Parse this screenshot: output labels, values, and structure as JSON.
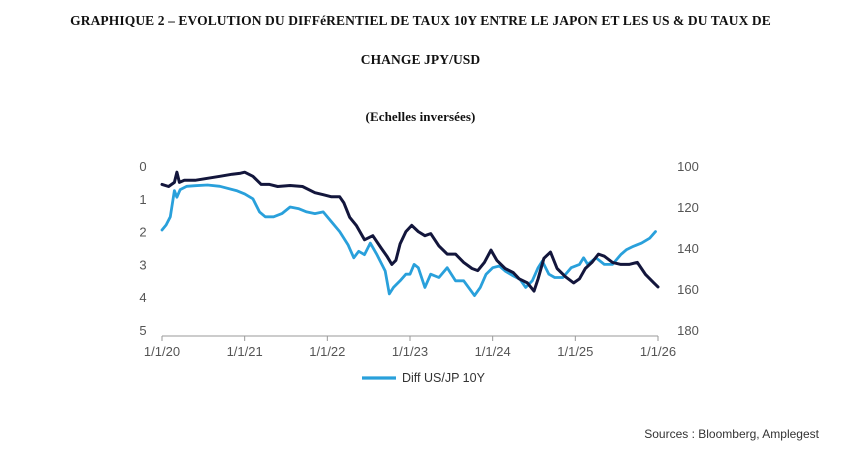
{
  "title_line1": "GRAPHIQUE 2 – EVOLUTION DU DIFFéRENTIEL DE TAUX 10Y ENTRE LE JAPON ET LES US & DU TAUX DE",
  "title_line2": "CHANGE JPY/USD",
  "subtitle": "(Echelles inversées)",
  "source": "Sources : Bloomberg, Amplegest",
  "colors": {
    "diff": "#29a0db",
    "fx": "#13163c",
    "axis": "#9a9a9a"
  },
  "chart_data": {
    "type": "line",
    "inverted_axes": true,
    "x_ticks": [
      "1/1/20",
      "1/1/21",
      "1/1/22",
      "1/1/23",
      "1/1/24",
      "1/1/25",
      "1/1/26"
    ],
    "x_range": [
      2020.0,
      2026.0
    ],
    "y_left": {
      "ticks": [
        "0",
        "1",
        "2",
        "3",
        "4",
        "5"
      ],
      "range": [
        0,
        5
      ],
      "inverted": true
    },
    "y_right": {
      "ticks": [
        "100",
        "120",
        "140",
        "160",
        "180"
      ],
      "range": [
        100,
        180
      ],
      "inverted": true
    },
    "legend": [
      {
        "label": "Diff US/JP 10Y",
        "series": "diff"
      }
    ],
    "series": [
      {
        "name": "Diff US/JP 10Y",
        "key": "diff",
        "axis": "left",
        "points": [
          [
            2020.0,
            1.95
          ],
          [
            2020.05,
            1.8
          ],
          [
            2020.1,
            1.55
          ],
          [
            2020.15,
            0.75
          ],
          [
            2020.18,
            0.95
          ],
          [
            2020.22,
            0.72
          ],
          [
            2020.3,
            0.62
          ],
          [
            2020.4,
            0.6
          ],
          [
            2020.55,
            0.58
          ],
          [
            2020.7,
            0.62
          ],
          [
            2020.9,
            0.75
          ],
          [
            2021.0,
            0.85
          ],
          [
            2021.1,
            1.0
          ],
          [
            2021.18,
            1.4
          ],
          [
            2021.25,
            1.55
          ],
          [
            2021.35,
            1.55
          ],
          [
            2021.45,
            1.45
          ],
          [
            2021.55,
            1.25
          ],
          [
            2021.65,
            1.3
          ],
          [
            2021.75,
            1.4
          ],
          [
            2021.85,
            1.45
          ],
          [
            2021.95,
            1.4
          ],
          [
            2022.05,
            1.7
          ],
          [
            2022.15,
            2.0
          ],
          [
            2022.25,
            2.4
          ],
          [
            2022.32,
            2.8
          ],
          [
            2022.38,
            2.6
          ],
          [
            2022.45,
            2.7
          ],
          [
            2022.52,
            2.35
          ],
          [
            2022.6,
            2.7
          ],
          [
            2022.7,
            3.2
          ],
          [
            2022.75,
            3.9
          ],
          [
            2022.8,
            3.7
          ],
          [
            2022.88,
            3.5
          ],
          [
            2022.95,
            3.3
          ],
          [
            2023.0,
            3.3
          ],
          [
            2023.05,
            3.0
          ],
          [
            2023.1,
            3.1
          ],
          [
            2023.18,
            3.7
          ],
          [
            2023.25,
            3.3
          ],
          [
            2023.35,
            3.4
          ],
          [
            2023.45,
            3.1
          ],
          [
            2023.55,
            3.5
          ],
          [
            2023.65,
            3.5
          ],
          [
            2023.78,
            3.95
          ],
          [
            2023.85,
            3.7
          ],
          [
            2023.92,
            3.3
          ],
          [
            2024.0,
            3.1
          ],
          [
            2024.08,
            3.05
          ],
          [
            2024.15,
            3.2
          ],
          [
            2024.25,
            3.35
          ],
          [
            2024.33,
            3.45
          ],
          [
            2024.4,
            3.7
          ],
          [
            2024.48,
            3.5
          ],
          [
            2024.55,
            3.1
          ],
          [
            2024.6,
            2.9
          ],
          [
            2024.68,
            3.3
          ],
          [
            2024.75,
            3.4
          ],
          [
            2024.85,
            3.4
          ],
          [
            2024.95,
            3.1
          ],
          [
            2025.05,
            3.0
          ],
          [
            2025.1,
            2.8
          ],
          [
            2025.15,
            3.0
          ],
          [
            2025.25,
            2.8
          ],
          [
            2025.35,
            3.0
          ],
          [
            2025.45,
            3.0
          ],
          [
            2025.55,
            2.7
          ],
          [
            2025.62,
            2.55
          ],
          [
            2025.7,
            2.45
          ],
          [
            2025.8,
            2.35
          ],
          [
            2025.9,
            2.2
          ],
          [
            2025.97,
            2.0
          ]
        ]
      },
      {
        "name": "JPY/USD",
        "key": "fx",
        "axis": "right",
        "points": [
          [
            2020.0,
            109
          ],
          [
            2020.08,
            110
          ],
          [
            2020.15,
            108
          ],
          [
            2020.18,
            103
          ],
          [
            2020.21,
            108
          ],
          [
            2020.27,
            107
          ],
          [
            2020.4,
            107
          ],
          [
            2020.55,
            106
          ],
          [
            2020.7,
            105
          ],
          [
            2020.85,
            104
          ],
          [
            2020.95,
            103.5
          ],
          [
            2021.0,
            103
          ],
          [
            2021.1,
            105
          ],
          [
            2021.2,
            109
          ],
          [
            2021.3,
            109
          ],
          [
            2021.4,
            110
          ],
          [
            2021.55,
            109.5
          ],
          [
            2021.7,
            110
          ],
          [
            2021.85,
            113
          ],
          [
            2021.95,
            114
          ],
          [
            2022.05,
            115
          ],
          [
            2022.15,
            115
          ],
          [
            2022.2,
            118
          ],
          [
            2022.27,
            125
          ],
          [
            2022.35,
            129
          ],
          [
            2022.45,
            136
          ],
          [
            2022.55,
            134
          ],
          [
            2022.65,
            140
          ],
          [
            2022.72,
            144
          ],
          [
            2022.78,
            148
          ],
          [
            2022.83,
            146
          ],
          [
            2022.88,
            138
          ],
          [
            2022.95,
            132
          ],
          [
            2023.02,
            129
          ],
          [
            2023.1,
            132
          ],
          [
            2023.18,
            134
          ],
          [
            2023.25,
            133
          ],
          [
            2023.35,
            139
          ],
          [
            2023.45,
            143
          ],
          [
            2023.55,
            143
          ],
          [
            2023.65,
            147
          ],
          [
            2023.75,
            150
          ],
          [
            2023.82,
            151
          ],
          [
            2023.9,
            147
          ],
          [
            2023.98,
            141
          ],
          [
            2024.05,
            146
          ],
          [
            2024.15,
            150
          ],
          [
            2024.25,
            152
          ],
          [
            2024.32,
            155
          ],
          [
            2024.42,
            157
          ],
          [
            2024.5,
            161
          ],
          [
            2024.55,
            155
          ],
          [
            2024.62,
            145
          ],
          [
            2024.7,
            142
          ],
          [
            2024.78,
            150
          ],
          [
            2024.88,
            154
          ],
          [
            2024.98,
            157
          ],
          [
            2025.05,
            155
          ],
          [
            2025.12,
            150
          ],
          [
            2025.2,
            147
          ],
          [
            2025.28,
            143
          ],
          [
            2025.35,
            144
          ],
          [
            2025.45,
            147
          ],
          [
            2025.55,
            148
          ],
          [
            2025.65,
            148
          ],
          [
            2025.75,
            147
          ],
          [
            2025.85,
            153
          ],
          [
            2025.95,
            157
          ],
          [
            2026.0,
            159
          ]
        ]
      }
    ]
  }
}
